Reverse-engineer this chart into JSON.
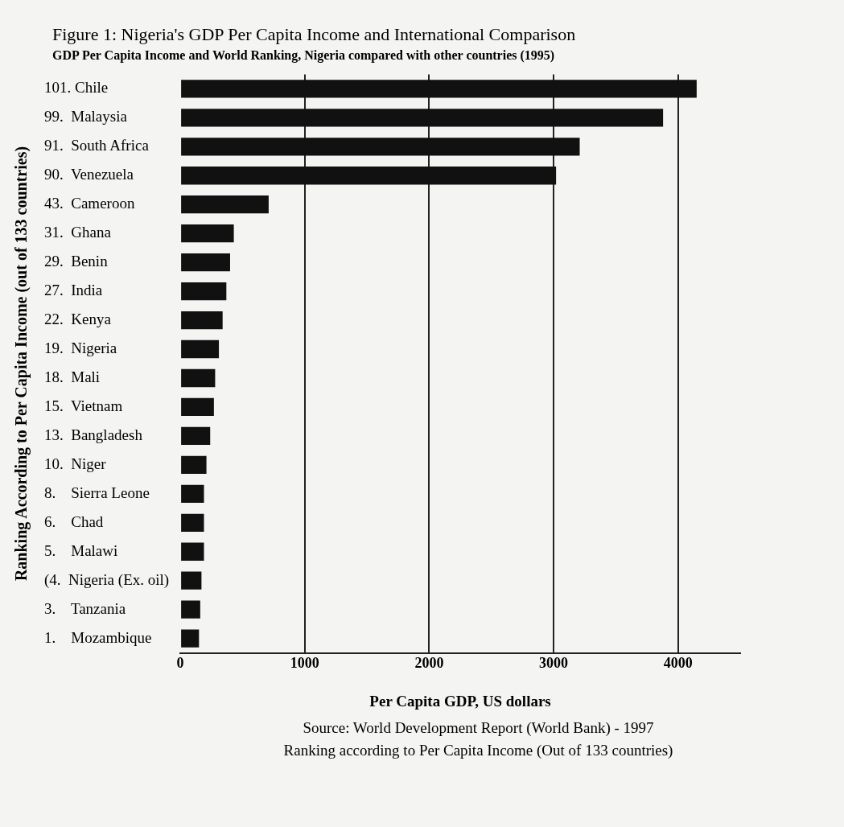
{
  "chart_data": {
    "type": "bar",
    "orientation": "horizontal",
    "title": "Figure 1: Nigeria's GDP Per Capita Income and International Comparison",
    "subtitle": "GDP Per Capita Income and World Ranking, Nigeria compared with other countries (1995)",
    "xlabel": "Per Capita GDP, US dollars",
    "ylabel": "Ranking According to Per Capita Income (out of 133 countries)",
    "categories": [
      "101. Chile",
      "99.  Malaysia",
      "91.  South Africa",
      "90.  Venezuela",
      "43.  Cameroon",
      "31.  Ghana",
      "29.  Benin",
      "27.  India",
      "22.  Kenya",
      "19.  Nigeria",
      "18.  Mali",
      "15.  Vietnam",
      "13.  Bangladesh",
      "10.  Niger",
      "8.    Sierra Leone",
      "6.    Chad",
      "5.    Malawi",
      "(4.  Nigeria (Ex. oil)",
      "3.    Tanzania",
      "1.    Mozambique"
    ],
    "values": [
      4150,
      3880,
      3210,
      3020,
      710,
      430,
      400,
      370,
      340,
      310,
      280,
      270,
      240,
      210,
      190,
      190,
      190,
      170,
      160,
      150
    ],
    "color": "#111111",
    "xlim": [
      0,
      4500
    ],
    "xticks": [
      0,
      1000,
      2000,
      3000,
      4000
    ],
    "grid": "x",
    "annotations": [
      "Source: World Development Report (World Bank) - 1997",
      "Ranking according to Per Capita Income (Out of 133 countries)"
    ]
  }
}
